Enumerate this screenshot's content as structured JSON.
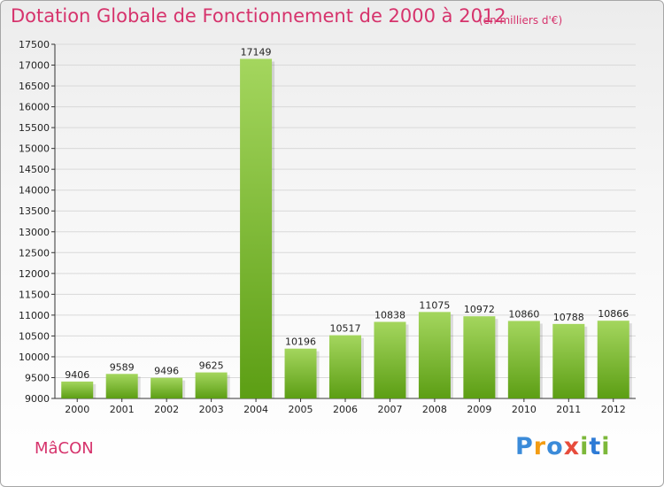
{
  "header": {
    "title": "Dotation Globale de Fonctionnement de 2000 à 2012",
    "subtitle": "(en milliers d'€)"
  },
  "footer": {
    "city": "MâCON",
    "logo_letters": [
      "P",
      "r",
      "o",
      "x",
      "i",
      "t",
      "i"
    ]
  },
  "colors": {
    "title": "#d6336c",
    "bar_top": "#a4d65e",
    "bar_bottom": "#5c9e14",
    "grid": "#d9d9d9"
  },
  "chart_data": {
    "type": "bar",
    "title": "Dotation Globale de Fonctionnement de 2000 à 2012",
    "subtitle": "(en milliers d'€)",
    "categories": [
      "2000",
      "2001",
      "2002",
      "2003",
      "2004",
      "2005",
      "2006",
      "2007",
      "2008",
      "2009",
      "2010",
      "2011",
      "2012"
    ],
    "values": [
      9406,
      9589,
      9496,
      9625,
      17149,
      10196,
      10517,
      10838,
      11075,
      10972,
      10860,
      10788,
      10866
    ],
    "xlabel": "",
    "ylabel": "",
    "ylim": [
      9000,
      17500
    ],
    "yticks": [
      9000,
      9500,
      10000,
      10500,
      11000,
      11500,
      12000,
      12500,
      13000,
      13500,
      14000,
      14500,
      15000,
      15500,
      16000,
      16500,
      17000,
      17500
    ],
    "grid": true,
    "legend": "none"
  }
}
